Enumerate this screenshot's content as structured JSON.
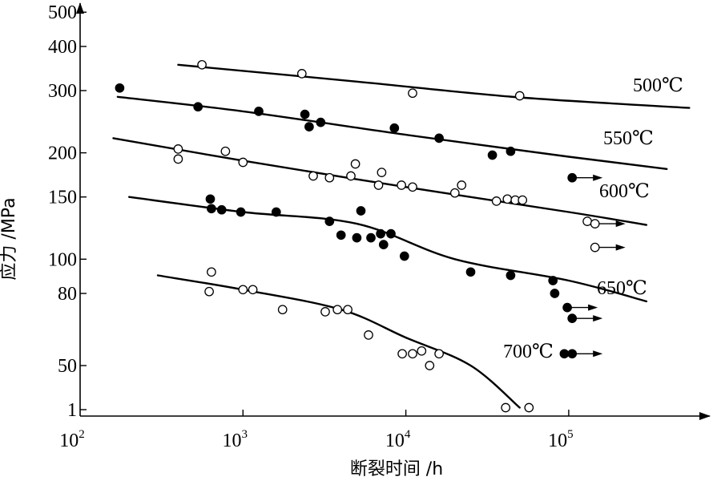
{
  "chart_data": {
    "type": "scatter",
    "xlabel": "断裂时间 /h",
    "ylabel": "应力 /MPa",
    "x_scale": "log",
    "y_scale": "log",
    "xlim": [
      100,
      800000
    ],
    "ylim": [
      30,
      560
    ],
    "x_ticks": [
      {
        "value": 100,
        "base": "10",
        "exp": "2"
      },
      {
        "value": 1000,
        "base": "10",
        "exp": "3"
      },
      {
        "value": 10000,
        "base": "10",
        "exp": "4"
      },
      {
        "value": 100000,
        "base": "10",
        "exp": "5"
      }
    ],
    "y_ticks": [
      {
        "value": 500,
        "label": "500"
      },
      {
        "value": 400,
        "label": "400"
      },
      {
        "value": 300,
        "label": "300"
      },
      {
        "value": 200,
        "label": "200"
      },
      {
        "value": 150,
        "label": "150"
      },
      {
        "value": 100,
        "label": "100"
      },
      {
        "value": 80,
        "label": "80"
      },
      {
        "value": 50,
        "label": "50"
      },
      {
        "value": 1,
        "label": "1"
      }
    ],
    "grid": false,
    "series": [
      {
        "name": "500℃",
        "marker": "open",
        "points": [
          [
            560,
            355
          ],
          [
            2300,
            335
          ],
          [
            11000,
            295
          ],
          [
            50000,
            290
          ]
        ],
        "runout": [],
        "curve": [
          [
            400,
            355
          ],
          [
            5000,
            318
          ],
          [
            50000,
            287
          ],
          [
            550000,
            268
          ]
        ]
      },
      {
        "name": "550℃",
        "marker": "filled",
        "points": [
          [
            175,
            305
          ],
          [
            530,
            270
          ],
          [
            1250,
            262
          ],
          [
            2400,
            257
          ],
          [
            2550,
            237
          ],
          [
            3000,
            244
          ],
          [
            8500,
            235
          ],
          [
            16000,
            220
          ],
          [
            34000,
            197
          ],
          [
            44000,
            202
          ]
        ],
        "runout": [
          [
            105000,
            170
          ]
        ],
        "curve": [
          [
            170,
            288
          ],
          [
            1000,
            262
          ],
          [
            10000,
            225
          ],
          [
            100000,
            195
          ],
          [
            400000,
            180
          ]
        ]
      },
      {
        "name": "600℃",
        "marker": "open",
        "points": [
          [
            400,
            205
          ],
          [
            400,
            192
          ],
          [
            780,
            202
          ],
          [
            1000,
            188
          ],
          [
            2700,
            172
          ],
          [
            3400,
            170
          ],
          [
            4600,
            172
          ],
          [
            4900,
            186
          ],
          [
            6800,
            162
          ],
          [
            7100,
            176
          ],
          [
            9400,
            162
          ],
          [
            11000,
            160
          ],
          [
            20000,
            154
          ],
          [
            22000,
            162
          ],
          [
            36000,
            146
          ],
          [
            42000,
            148
          ],
          [
            47000,
            147
          ],
          [
            52000,
            147
          ],
          [
            130000,
            128
          ]
        ],
        "runout": [
          [
            145000,
            126
          ],
          [
            145000,
            108
          ]
        ],
        "curve": [
          [
            160,
            220
          ],
          [
            1000,
            190
          ],
          [
            10000,
            160
          ],
          [
            100000,
            136
          ],
          [
            300000,
            125
          ]
        ]
      },
      {
        "name": "650℃",
        "marker": "filled",
        "points": [
          [
            630,
            148
          ],
          [
            640,
            139
          ],
          [
            740,
            138
          ],
          [
            970,
            136
          ],
          [
            1600,
            136
          ],
          [
            3400,
            128
          ],
          [
            4000,
            117
          ],
          [
            5000,
            115
          ],
          [
            5300,
            137
          ],
          [
            6100,
            115
          ],
          [
            7000,
            118
          ],
          [
            7300,
            110
          ],
          [
            8100,
            118
          ],
          [
            9800,
            102
          ],
          [
            25000,
            92
          ],
          [
            44000,
            90
          ],
          [
            80000,
            87
          ],
          [
            82000,
            80
          ],
          [
            94000,
            54
          ]
        ],
        "runout": [
          [
            98000,
            73
          ],
          [
            105000,
            68
          ],
          [
            105000,
            54
          ]
        ],
        "curve": [
          [
            200,
            150
          ],
          [
            1000,
            136
          ],
          [
            5000,
            126
          ],
          [
            20000,
            100
          ],
          [
            100000,
            87
          ],
          [
            300000,
            76
          ]
        ]
      },
      {
        "name": "700℃",
        "marker": "open",
        "points": [
          [
            640,
            92
          ],
          [
            620,
            81
          ],
          [
            1000,
            82
          ],
          [
            1150,
            82
          ],
          [
            1750,
            72
          ],
          [
            3200,
            71
          ],
          [
            3800,
            72
          ],
          [
            4400,
            72
          ],
          [
            5900,
            61
          ],
          [
            9500,
            54
          ],
          [
            11000,
            54
          ],
          [
            12500,
            55
          ],
          [
            14000,
            50
          ],
          [
            16000,
            54
          ],
          [
            41000,
            38
          ],
          [
            57000,
            38
          ]
        ],
        "runout": [],
        "curve": [
          [
            300,
            90
          ],
          [
            1000,
            82
          ],
          [
            4000,
            72
          ],
          [
            10000,
            60
          ],
          [
            25000,
            50
          ],
          [
            50000,
            38
          ]
        ]
      }
    ]
  }
}
